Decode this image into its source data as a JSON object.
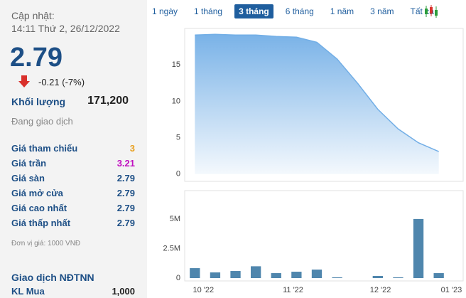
{
  "sidebar": {
    "update_label": "Cập nhật:",
    "update_time": "14:11 Thứ 2, 26/12/2022",
    "price": "2.79",
    "change": "-0.21 (-7%)",
    "volume_label": "Khối lượng",
    "volume": "171,200",
    "status": "Đang giao dịch",
    "rows": [
      {
        "label": "Giá tham chiếu",
        "value": "3",
        "color": "#e8a020"
      },
      {
        "label": "Giá trần",
        "value": "3.21",
        "color": "#c010c0"
      },
      {
        "label": "Giá sàn",
        "value": "2.79",
        "color": "#1d4f86"
      },
      {
        "label": "Giá mở cửa",
        "value": "2.79",
        "color": "#1d4f86"
      },
      {
        "label": "Giá cao nhất",
        "value": "2.79",
        "color": "#1d4f86"
      },
      {
        "label": "Giá thấp nhất",
        "value": "2.79",
        "color": "#1d4f86"
      }
    ],
    "unit_note": "Đơn vị giá: 1000 VNĐ",
    "foreign_title": "Giao dịch NĐTNN",
    "foreign_rows": [
      {
        "label": "KL Mua",
        "value": "1,000"
      }
    ]
  },
  "tabs": [
    "1 ngày",
    "1 tháng",
    "3 tháng",
    "6 tháng",
    "1 năm",
    "3 năm",
    "Tất cả"
  ],
  "active_tab": 2,
  "chart_data": [
    {
      "type": "area",
      "x": [
        0,
        1,
        2,
        3,
        4,
        5,
        6,
        7,
        8,
        9,
        10,
        11,
        12
      ],
      "values": [
        19.1,
        19.2,
        19.1,
        19.1,
        18.9,
        18.8,
        18.1,
        15.8,
        12.5,
        8.9,
        6.2,
        4.3,
        3.1
      ],
      "xlim": [
        -0.5,
        13.2
      ],
      "ylim": [
        -1,
        20
      ],
      "yticks": [
        0,
        5,
        10,
        15
      ],
      "color": "#72aee6"
    },
    {
      "type": "bar",
      "x": [
        0,
        1,
        2,
        3,
        4,
        5,
        6,
        7,
        8,
        9,
        10,
        11,
        12
      ],
      "values": [
        840000,
        480000,
        600000,
        1000000,
        420000,
        540000,
        720000,
        60000,
        0,
        180000,
        60000,
        5000000,
        420000
      ],
      "xlim": [
        -0.5,
        13.2
      ],
      "ylim": [
        -240000,
        7400000
      ],
      "yticks": [
        {
          "value": 0,
          "label": "0"
        },
        {
          "value": 2500000,
          "label": "2.5M"
        },
        {
          "value": 5000000,
          "label": "5M"
        }
      ],
      "xticks": [
        {
          "value": 0.42,
          "label": "10 '22"
        },
        {
          "value": 4.83,
          "label": "11 '22"
        },
        {
          "value": 9.13,
          "label": "12 '22"
        },
        {
          "value": 12.62,
          "label": "01 '23"
        }
      ],
      "color": "#4f86ad"
    }
  ]
}
